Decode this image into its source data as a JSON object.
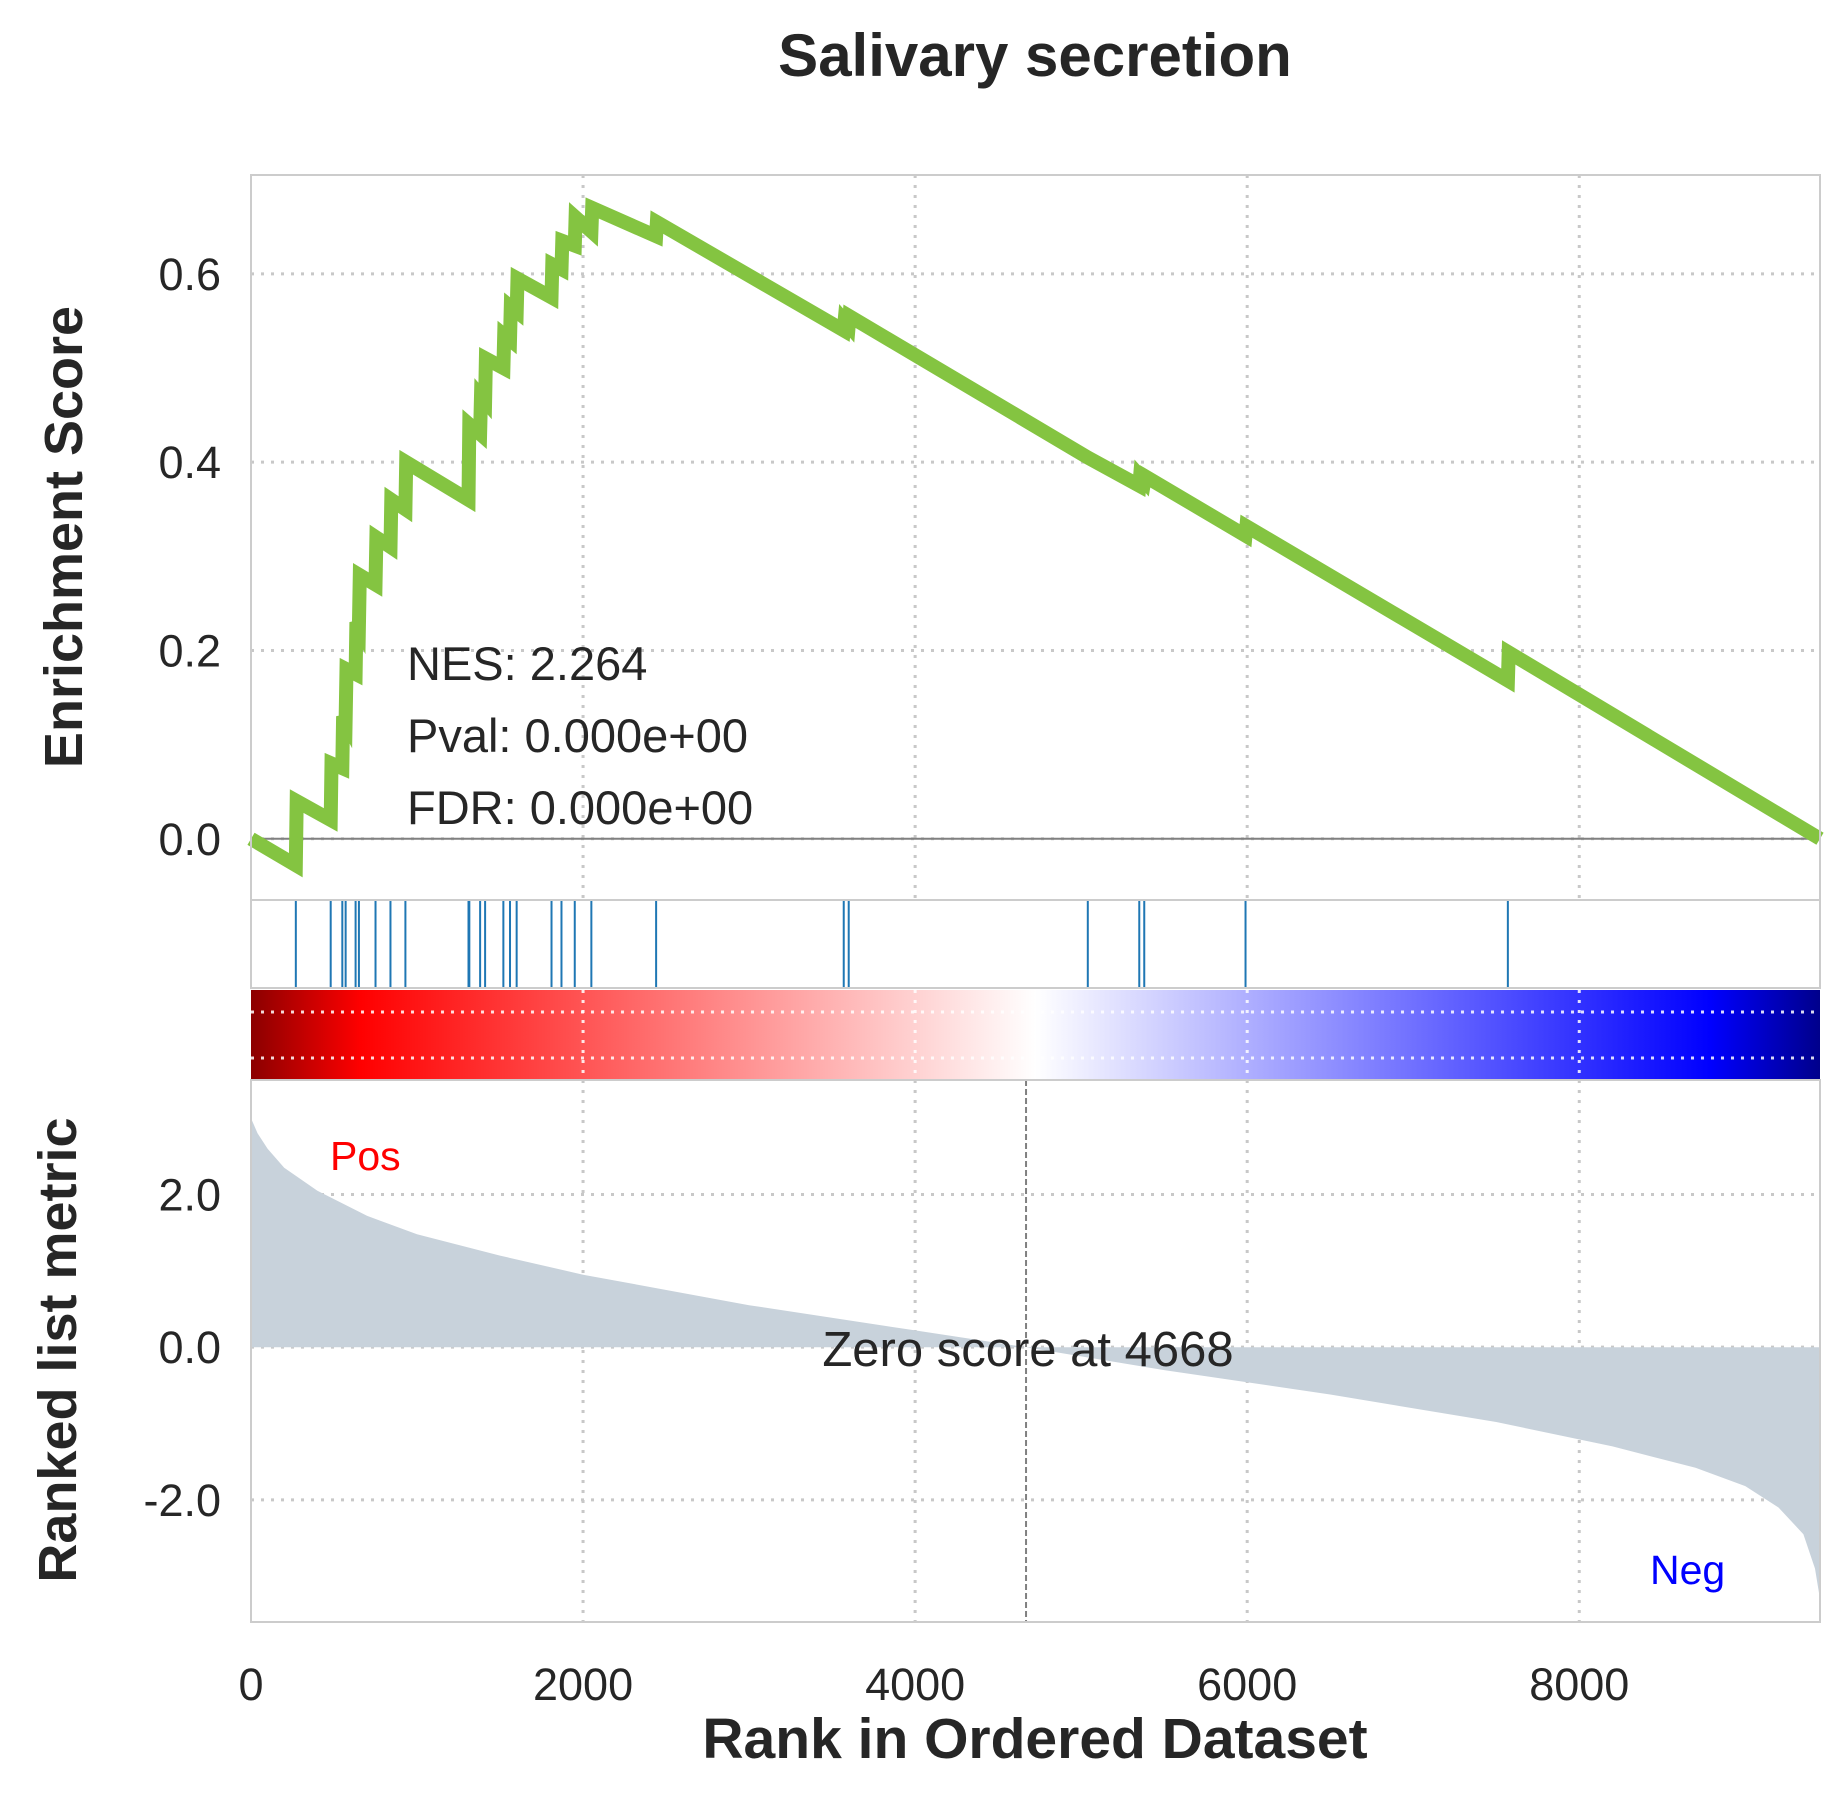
{
  "chart_data": {
    "type": "line",
    "title": "Salivary secretion",
    "xlabel": "Rank in Ordered Dataset",
    "xlim": [
      0,
      9450
    ],
    "x_ticks": [
      "0",
      "2000",
      "4000",
      "6000",
      "8000"
    ],
    "grid": true,
    "enrichment": {
      "ylabel": "Enrichment Score",
      "ylim": [
        -0.065,
        0.705
      ],
      "y_ticks": [
        "0.0",
        "0.2",
        "0.4",
        "0.6"
      ],
      "line_color": "#84c441",
      "stats": {
        "nes": "NES: 2.264",
        "pval": "Pval: 0.000e+00",
        "fdr": "FDR: 0.000e+00"
      },
      "points": [
        [
          0,
          0.0
        ],
        [
          270,
          -0.028
        ],
        [
          275,
          0.04
        ],
        [
          480,
          0.02
        ],
        [
          485,
          0.08
        ],
        [
          550,
          0.075
        ],
        [
          555,
          0.13
        ],
        [
          570,
          0.125
        ],
        [
          575,
          0.18
        ],
        [
          630,
          0.175
        ],
        [
          635,
          0.23
        ],
        [
          650,
          0.225
        ],
        [
          655,
          0.28
        ],
        [
          750,
          0.27
        ],
        [
          755,
          0.32
        ],
        [
          840,
          0.31
        ],
        [
          845,
          0.36
        ],
        [
          930,
          0.35
        ],
        [
          935,
          0.4
        ],
        [
          1310,
          0.36
        ],
        [
          1315,
          0.44
        ],
        [
          1380,
          0.43
        ],
        [
          1385,
          0.47
        ],
        [
          1410,
          0.465
        ],
        [
          1415,
          0.51
        ],
        [
          1520,
          0.5
        ],
        [
          1525,
          0.535
        ],
        [
          1560,
          0.53
        ],
        [
          1565,
          0.565
        ],
        [
          1600,
          0.56
        ],
        [
          1605,
          0.595
        ],
        [
          1810,
          0.575
        ],
        [
          1815,
          0.61
        ],
        [
          1870,
          0.605
        ],
        [
          1875,
          0.635
        ],
        [
          1950,
          0.63
        ],
        [
          1955,
          0.66
        ],
        [
          2050,
          0.645
        ],
        [
          2055,
          0.67
        ],
        [
          2440,
          0.64
        ],
        [
          2445,
          0.655
        ],
        [
          3570,
          0.54
        ],
        [
          3575,
          0.55
        ],
        [
          3600,
          0.545
        ],
        [
          3605,
          0.555
        ],
        [
          5040,
          0.405
        ],
        [
          5350,
          0.375
        ],
        [
          5355,
          0.385
        ],
        [
          5380,
          0.38
        ],
        [
          5385,
          0.385
        ],
        [
          5990,
          0.322
        ],
        [
          5995,
          0.332
        ],
        [
          7570,
          0.168
        ],
        [
          7575,
          0.198
        ],
        [
          9450,
          0.0
        ]
      ]
    },
    "hits": [
      270,
      480,
      550,
      570,
      630,
      650,
      750,
      840,
      930,
      1310,
      1315,
      1380,
      1410,
      1520,
      1560,
      1600,
      1810,
      1870,
      1950,
      2050,
      2440,
      3570,
      3600,
      5040,
      5350,
      5380,
      5990,
      7570
    ],
    "hit_color": "#1f77b4",
    "colorbar": [
      "#8b0000",
      "#ff0000",
      "#ffffff",
      "#0000ff",
      "#00008b"
    ],
    "ranked_metric": {
      "ylabel": "Ranked list metric",
      "ylim": [
        -3.6,
        3.5
      ],
      "y_ticks": [
        "2.0",
        "0.0",
        "-2.0"
      ],
      "fill_color": "#c8d2db",
      "pos_label": "Pos",
      "neg_label": "Neg",
      "zero_cross_label": "Zero score at 4668",
      "zero_cross": 4668,
      "curve": [
        [
          0,
          3.0
        ],
        [
          40,
          2.8
        ],
        [
          100,
          2.6
        ],
        [
          200,
          2.35
        ],
        [
          400,
          2.05
        ],
        [
          700,
          1.72
        ],
        [
          1000,
          1.48
        ],
        [
          1500,
          1.2
        ],
        [
          2000,
          0.95
        ],
        [
          3000,
          0.55
        ],
        [
          4000,
          0.22
        ],
        [
          4668,
          0.0
        ],
        [
          5500,
          -0.3
        ],
        [
          6500,
          -0.62
        ],
        [
          7500,
          -0.98
        ],
        [
          8200,
          -1.3
        ],
        [
          8700,
          -1.58
        ],
        [
          9000,
          -1.82
        ],
        [
          9200,
          -2.1
        ],
        [
          9350,
          -2.45
        ],
        [
          9420,
          -2.9
        ],
        [
          9450,
          -3.3
        ]
      ]
    }
  }
}
